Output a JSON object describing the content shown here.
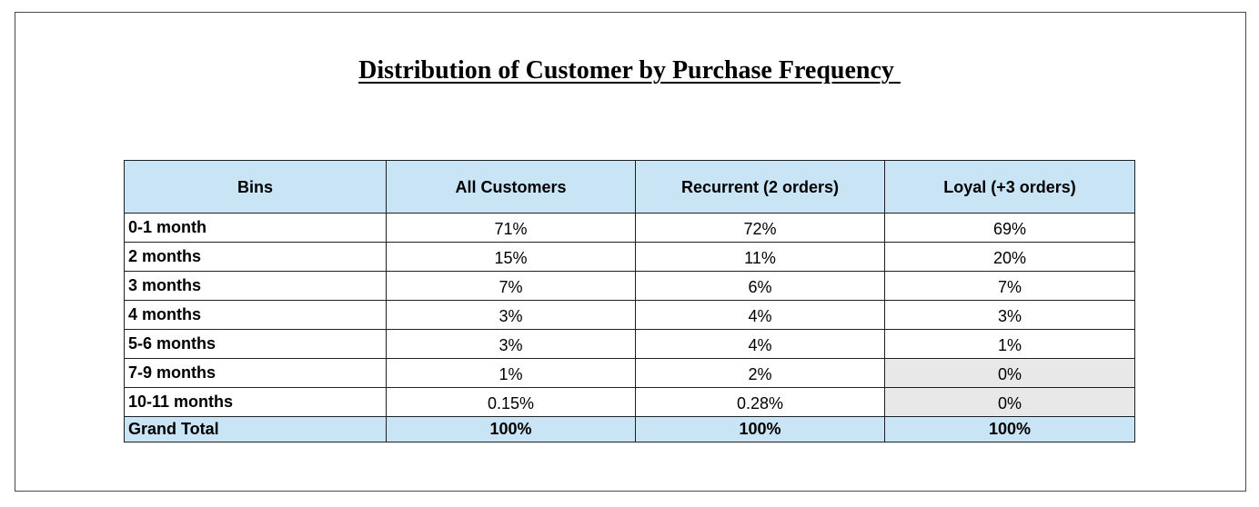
{
  "chart_data": {
    "type": "table",
    "title": "Distribution of Customer by Purchase Frequency ",
    "columns": [
      "Bins",
      "All Customers",
      "Recurrent (2 orders)",
      "Loyal (+3 orders)"
    ],
    "rows": [
      {
        "bin": "0-1 month",
        "values": [
          "71%",
          "72%",
          "69%"
        ]
      },
      {
        "bin": "2 months",
        "values": [
          "15%",
          "11%",
          "20%"
        ]
      },
      {
        "bin": "3 months",
        "values": [
          "7%",
          "6%",
          "7%"
        ]
      },
      {
        "bin": "4 months",
        "values": [
          "3%",
          "4%",
          "3%"
        ]
      },
      {
        "bin": "5-6 months",
        "values": [
          "3%",
          "4%",
          "1%"
        ]
      },
      {
        "bin": "7-9 months",
        "values": [
          "1%",
          "2%",
          "0%"
        ]
      },
      {
        "bin": "10-11 months",
        "values": [
          "0.15%",
          "0.28%",
          "0%"
        ]
      }
    ],
    "total": {
      "bin": "Grand Total",
      "values": [
        "100%",
        "100%",
        "100%"
      ]
    },
    "shaded_cells": [
      [
        5,
        2
      ],
      [
        6,
        2
      ]
    ],
    "colors": {
      "header_fill": "#c9e4f5",
      "total_fill": "#c9e4f5",
      "shaded_fill": "#e8e8e8"
    }
  }
}
